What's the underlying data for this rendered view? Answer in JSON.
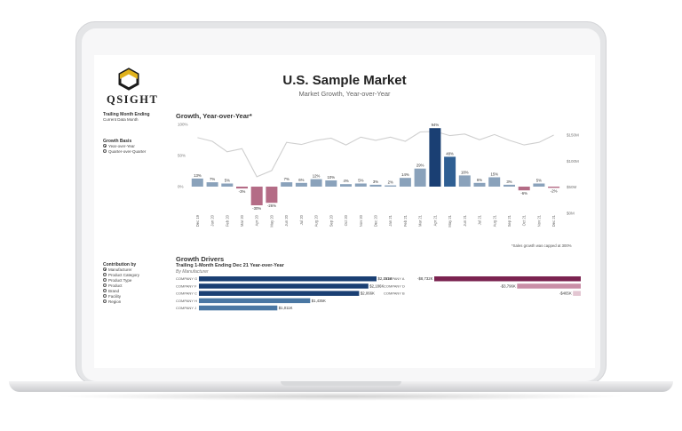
{
  "app": {
    "logo_text": "QSIGHT",
    "logo_sub": "BY ...",
    "title": "U.S. Sample Market",
    "subtitle": "Market Growth, Year-over-Year"
  },
  "filters": {
    "trailing_title": "Trailing Month Ending",
    "trailing_value": "Current Data Month",
    "growth_basis_title": "Growth Basis",
    "growth_basis_options": [
      "Year-over-Year",
      "Quarter-over-Quarter"
    ],
    "growth_basis_selected": 0,
    "contribution_title": "Contribution by",
    "contribution_options": [
      "Manufacturer",
      "Product Category",
      "Product Type",
      "Product",
      "Brand",
      "Facility",
      "Region"
    ],
    "contribution_selected": 0
  },
  "growth_chart": {
    "section_title": "Growth, Year-over-Year*",
    "footnote": "*Sales growth was capped at 300%",
    "colors": {
      "positive": "#8aa2bb",
      "negative": "#b46c86",
      "highlight": "#1a3f73",
      "mid": "#2f5f93",
      "line": "#cfcfcf"
    }
  },
  "drivers": {
    "section_title": "Growth Drivers",
    "subtitle": "Trailing 1-Month Ending Dec 21 Year-over-Year",
    "byline": "By Manufacturer"
  },
  "chart_data": [
    {
      "type": "bar",
      "title": "Growth, Year-over-Year*",
      "categories": [
        "Dec 19",
        "Jan 20",
        "Feb 20",
        "Mar 20",
        "Apr 20",
        "May 20",
        "Jun 20",
        "Jul 20",
        "Aug 20",
        "Sep 20",
        "Oct 20",
        "Nov 20",
        "Dec 20",
        "Jan 21",
        "Feb 21",
        "Mar 21",
        "Apr 21",
        "May 21",
        "Jun 21",
        "Jul 21",
        "Aug 21",
        "Sep 21",
        "Oct 21",
        "Nov 21",
        "Dec 21"
      ],
      "series": [
        {
          "values": [
            13,
            7,
            5,
            -3,
            -30,
            -26,
            7,
            6,
            12,
            10,
            4,
            5,
            3,
            2,
            14,
            29,
            94,
            48,
            18,
            6,
            15,
            3,
            -6,
            5,
            -2
          ]
        }
      ],
      "data_labels": [
        "13%",
        "7%",
        "5%",
        "-3%",
        "-30%",
        "-26%",
        "7%",
        "6%",
        "12%",
        "10%",
        "4%",
        "5%",
        "3%",
        "2%",
        "14%",
        "29%",
        "94%",
        "48%",
        "18%",
        "6%",
        "15%",
        "3%",
        "-6%",
        "5%",
        "-2%"
      ],
      "left_axis_ticks": [
        "100%",
        "50%",
        "0%"
      ],
      "ylim": [
        -50,
        100
      ],
      "secondary_line": {
        "values": [
          145,
          138,
          118,
          124,
          70,
          82,
          136,
          132,
          140,
          144,
          131,
          146,
          140,
          146,
          138,
          156,
          157,
          149,
          152,
          141,
          151,
          140,
          131,
          136,
          150
        ],
        "right_axis_ticks": [
          "$150M",
          "$100M",
          "$50M",
          "$0M"
        ]
      },
      "grid": false
    },
    {
      "type": "bar",
      "title": "Growth Drivers",
      "orientation": "horizontal",
      "positive": [
        {
          "name": "COMPANY G",
          "value": 2291,
          "label": "$2,291K",
          "color": "#1a3f73"
        },
        {
          "name": "COMPANY F",
          "value": 2186,
          "label": "$2,186K",
          "color": "#1a3f73"
        },
        {
          "name": "COMPANY C",
          "value": 2066,
          "label": "$2,066K",
          "color": "#1a3f73"
        },
        {
          "name": "COMPANY H",
          "value": 1435,
          "label": "$1,435K",
          "color": "#4a77a3"
        },
        {
          "name": "COMPANY J",
          "value": 1011,
          "label": "$1,011K",
          "color": "#4a77a3"
        }
      ],
      "negative": [
        {
          "name": "COMPANY A",
          "value": -8732,
          "label": "-$8,732K",
          "color": "#7b2350"
        },
        {
          "name": "COMPANY D",
          "value": -3796,
          "label": "-$3,796K",
          "color": "#c98fa7"
        },
        {
          "name": "COMPANY B",
          "value": -465,
          "label": "-$465K",
          "color": "#e3c6d2"
        }
      ]
    }
  ]
}
